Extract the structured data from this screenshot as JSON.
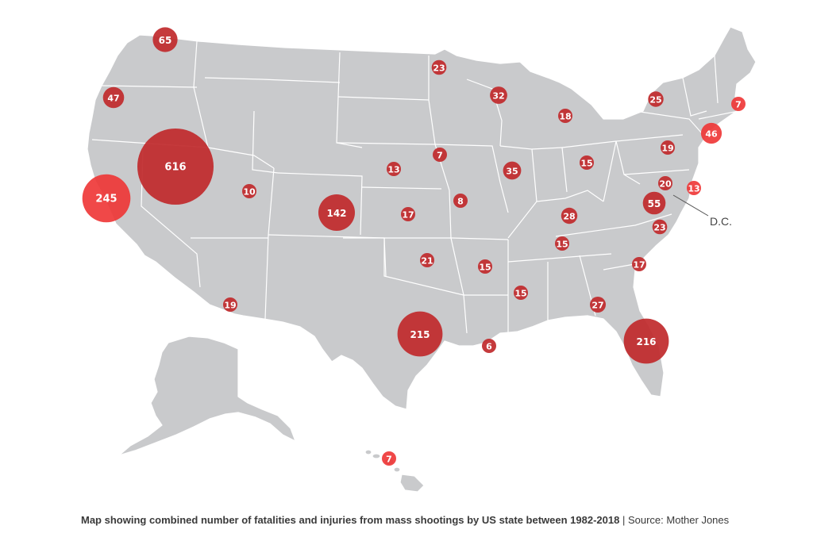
{
  "caption": {
    "title": "Map showing combined number of fatalities and injuries from mass shootings by US state between 1982-2018",
    "separator": "|",
    "source": "Source: Mother Jones"
  },
  "colors": {
    "land": "#c9cacc",
    "border": "#ffffff",
    "bubble": "#c0292b",
    "bubble_light": "#ee3434",
    "label": "#ffffff"
  },
  "dc_label": "D.C.",
  "states": [
    {
      "id": "washington",
      "value": "65"
    },
    {
      "id": "oregon",
      "value": "47"
    },
    {
      "id": "california",
      "value": "245"
    },
    {
      "id": "nevada",
      "value": "616"
    },
    {
      "id": "utah",
      "value": "10"
    },
    {
      "id": "arizona",
      "value": "19"
    },
    {
      "id": "colorado",
      "value": "142"
    },
    {
      "id": "nebraska",
      "value": "13"
    },
    {
      "id": "kansas",
      "value": "17"
    },
    {
      "id": "oklahoma",
      "value": "21"
    },
    {
      "id": "texas",
      "value": "215"
    },
    {
      "id": "minnesota",
      "value": "23"
    },
    {
      "id": "iowa",
      "value": "7"
    },
    {
      "id": "missouri",
      "value": "8"
    },
    {
      "id": "arkansas",
      "value": "15"
    },
    {
      "id": "louisiana",
      "value": "6"
    },
    {
      "id": "wisconsin",
      "value": "32"
    },
    {
      "id": "illinois",
      "value": "35"
    },
    {
      "id": "michigan",
      "value": "18"
    },
    {
      "id": "ohio",
      "value": "15"
    },
    {
      "id": "kentucky",
      "value": "28"
    },
    {
      "id": "tennessee",
      "value": "15"
    },
    {
      "id": "mississippi",
      "value": "15"
    },
    {
      "id": "georgia",
      "value": "27"
    },
    {
      "id": "florida",
      "value": "216"
    },
    {
      "id": "south-carolina",
      "value": "17"
    },
    {
      "id": "north-carolina",
      "value": "23"
    },
    {
      "id": "virginia",
      "value": "55"
    },
    {
      "id": "dc",
      "value": "20"
    },
    {
      "id": "delaware",
      "value": "13"
    },
    {
      "id": "pennsylvania",
      "value": "19"
    },
    {
      "id": "new-york",
      "value": "25"
    },
    {
      "id": "connecticut",
      "value": "46"
    },
    {
      "id": "massachusetts",
      "value": "7"
    },
    {
      "id": "hawaii",
      "value": "7"
    }
  ]
}
